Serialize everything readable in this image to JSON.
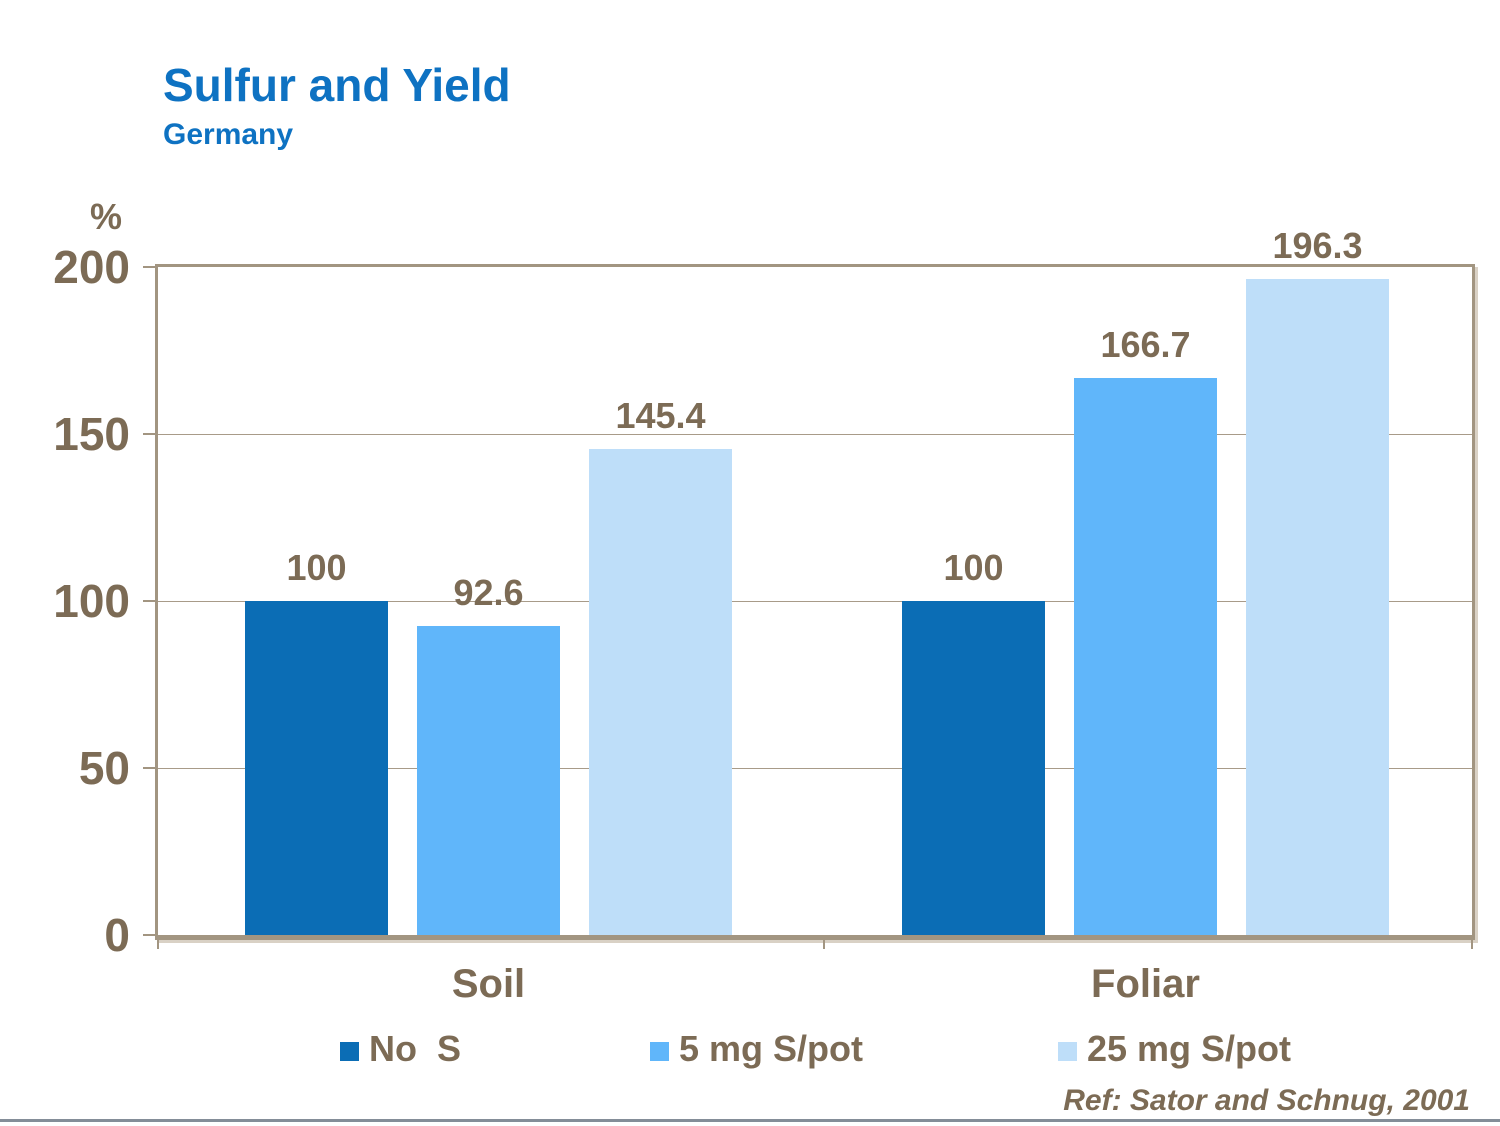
{
  "slide": {
    "title": "Sulfur and Yield",
    "subtitle": "Germany",
    "reference": "Ref: Sator and Schnug, 2001",
    "colors": {
      "title_blue": "#0e72c2",
      "axis_text_brown": "#7c6b55",
      "plot_border_tan": "#a29581",
      "gridline": "#a89b89",
      "bottom_rule_gray": "#848d98"
    }
  },
  "chart_data": {
    "type": "bar",
    "title": "Sulfur and Yield",
    "subtitle": "Germany",
    "ylabel": "%",
    "xlabel": "",
    "ylim": [
      0,
      200
    ],
    "yticks": [
      0,
      50,
      100,
      150,
      200
    ],
    "grid": true,
    "legend_position": "bottom",
    "categories": [
      "Soil",
      "Foliar"
    ],
    "series": [
      {
        "name": "No  S",
        "color": "#0b6db5",
        "values": [
          100,
          100
        ]
      },
      {
        "name": "5 mg S/pot",
        "color": "#60b6fa",
        "values": [
          92.6,
          166.7
        ]
      },
      {
        "name": "25 mg S/pot",
        "color": "#bedef9",
        "values": [
          145.4,
          196.3
        ]
      }
    ],
    "value_labels": [
      "100",
      "92.6",
      "145.4",
      "100",
      "166.7",
      "196.3"
    ],
    "reference": "Ref: Sator and Schnug, 2001"
  }
}
